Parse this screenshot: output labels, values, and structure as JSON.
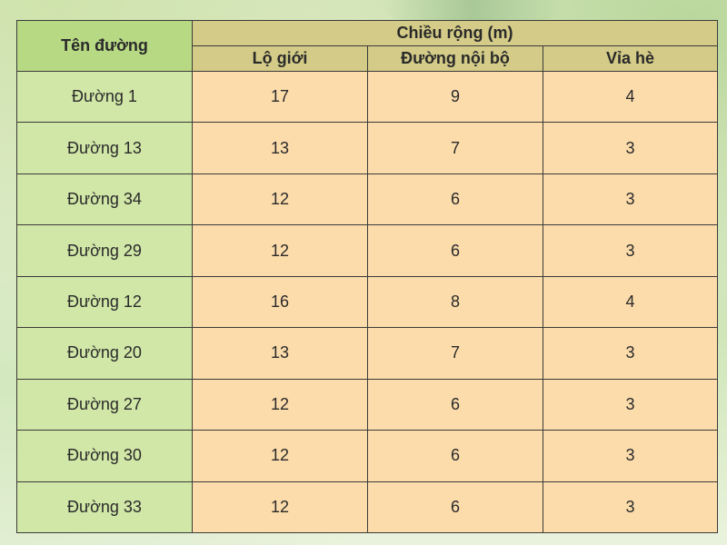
{
  "table": {
    "header_name": "Tên đường",
    "header_group": "Chiều rộng (m)",
    "sub_headers": [
      "Lộ giới",
      "Đường nội bộ",
      "Vỉa hè"
    ],
    "rows": [
      {
        "name": "Đường 1",
        "values": [
          "17",
          "9",
          "4"
        ]
      },
      {
        "name": "Đường 13",
        "values": [
          "13",
          "7",
          "3"
        ]
      },
      {
        "name": "Đường 34",
        "values": [
          "12",
          "6",
          "3"
        ]
      },
      {
        "name": "Đường 29",
        "values": [
          "12",
          "6",
          "3"
        ]
      },
      {
        "name": "Đường 12",
        "values": [
          "16",
          "8",
          "4"
        ]
      },
      {
        "name": "Đường 20",
        "values": [
          "13",
          "7",
          "3"
        ]
      },
      {
        "name": "Đường 27",
        "values": [
          "12",
          "6",
          "3"
        ]
      },
      {
        "name": "Đường 30",
        "values": [
          "12",
          "6",
          "3"
        ]
      },
      {
        "name": "Đường 33",
        "values": [
          "12",
          "6",
          "3"
        ]
      }
    ]
  },
  "colors": {
    "name_header_bg": "#b8d984",
    "group_header_bg": "#d3cb87",
    "name_cell_bg": "#d1e7a7",
    "value_cell_bg": "#fcdcab",
    "border": "#3b3b3b"
  }
}
